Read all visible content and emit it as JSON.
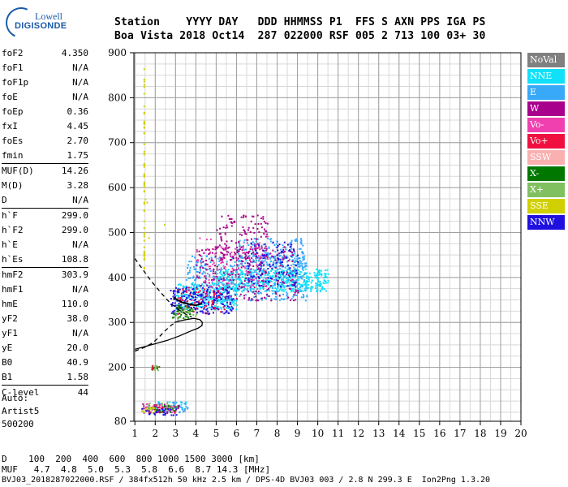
{
  "logo": {
    "line1": "Lowell",
    "line2": "DIGISONDE"
  },
  "header": {
    "row1": "Station    YYYY DAY   DDD HHMMSS P1  FFS S AXN PPS IGA PS",
    "row2": "Boa Vista 2018 Oct14  287 022000 RSF 005 2 713 100 03+ 30"
  },
  "params": [
    {
      "label": "foF2",
      "value": "4.350",
      "sep": false
    },
    {
      "label": "foF1",
      "value": "N/A",
      "sep": false
    },
    {
      "label": "foF1p",
      "value": "N/A",
      "sep": false
    },
    {
      "label": "foE",
      "value": "N/A",
      "sep": false
    },
    {
      "label": "foEp",
      "value": "0.36",
      "sep": false
    },
    {
      "label": "fxI",
      "value": "4.45",
      "sep": false
    },
    {
      "label": "foEs",
      "value": "2.70",
      "sep": false
    },
    {
      "label": "fmin",
      "value": "1.75",
      "sep": false
    },
    {
      "label": "MUF(D)",
      "value": "14.26",
      "sep": true
    },
    {
      "label": "M(D)",
      "value": "3.28",
      "sep": false
    },
    {
      "label": "D",
      "value": "N/A",
      "sep": false
    },
    {
      "label": "h`F",
      "value": "299.0",
      "sep": true
    },
    {
      "label": "h`F2",
      "value": "299.0",
      "sep": false
    },
    {
      "label": "h`E",
      "value": "N/A",
      "sep": false
    },
    {
      "label": "h`Es",
      "value": "108.8",
      "sep": false
    },
    {
      "label": "hmF2",
      "value": "303.9",
      "sep": true
    },
    {
      "label": "hmF1",
      "value": "N/A",
      "sep": false
    },
    {
      "label": "hmE",
      "value": "110.0",
      "sep": false
    },
    {
      "label": "yF2",
      "value": "38.0",
      "sep": false
    },
    {
      "label": "yF1",
      "value": "N/A",
      "sep": false
    },
    {
      "label": "yE",
      "value": "20.0",
      "sep": false
    },
    {
      "label": "B0",
      "value": "40.9",
      "sep": false
    },
    {
      "label": "B1",
      "value": "1.58",
      "sep": false
    },
    {
      "label": "C-level",
      "value": "44",
      "sep": true
    }
  ],
  "auto": {
    "line1": "Auto:",
    "line2": "Artist5",
    "line3": "500200"
  },
  "legend": [
    {
      "label": "NoVal",
      "color": "#808080"
    },
    {
      "label": "NNE",
      "color": "#10e0f8"
    },
    {
      "label": "E",
      "color": "#38a8f8"
    },
    {
      "label": "W",
      "color": "#a8008c"
    },
    {
      "label": "Vo-",
      "color": "#f040b0"
    },
    {
      "label": "Vo+",
      "color": "#f01040"
    },
    {
      "label": "SSW",
      "color": "#f8b0b0"
    },
    {
      "label": "X-",
      "color": "#007800"
    },
    {
      "label": "X+",
      "color": "#80c060"
    },
    {
      "label": "SSE",
      "color": "#d0d000"
    },
    {
      "label": "NNW",
      "color": "#2010e0"
    }
  ],
  "footer": {
    "row1": "D    100  200  400  600  800 1000 1500 3000 [km]",
    "row2": "MUF   4.7  4.8  5.0  5.3  5.8  6.6  8.7 14.3 [MHz]",
    "row3": "BVJ03_2018287022000.RSF / 384fx512h 50 kHz 2.5 km / DPS-4D BVJ03 003 / 2.8 N 299.3 E  Ion2Png 1.3.20"
  },
  "chart_data": {
    "type": "scatter",
    "xlim": [
      1,
      20
    ],
    "ylim": [
      80,
      900
    ],
    "xticks": [
      1,
      2,
      3,
      4,
      5,
      6,
      7,
      8,
      9,
      10,
      11,
      12,
      13,
      14,
      15,
      16,
      17,
      18,
      19,
      20
    ],
    "yticks": [
      80,
      200,
      300,
      400,
      500,
      600,
      700,
      800,
      900
    ],
    "xticks_minor_step": 0.5,
    "yticks_minor_step": 25,
    "grid": true,
    "legend_position": "right",
    "echo_clusters": [
      {
        "series": "NNE",
        "x": [
          5.0,
          10.5
        ],
        "y": [
          370,
          420
        ],
        "n": 520
      },
      {
        "series": "NNE",
        "x": [
          3.0,
          6.0
        ],
        "y": [
          330,
          390
        ],
        "n": 260
      },
      {
        "series": "E",
        "x": [
          3.5,
          9.5
        ],
        "y": [
          350,
          450
        ],
        "n": 420
      },
      {
        "series": "E",
        "x": [
          6.0,
          9.3
        ],
        "y": [
          420,
          490
        ],
        "n": 160
      },
      {
        "series": "W",
        "x": [
          4.0,
          9.0
        ],
        "y": [
          350,
          470
        ],
        "n": 280
      },
      {
        "series": "W",
        "x": [
          5.0,
          7.5
        ],
        "y": [
          440,
          540
        ],
        "n": 120
      },
      {
        "series": "NNW",
        "x": [
          2.7,
          5.8
        ],
        "y": [
          320,
          380
        ],
        "n": 200
      },
      {
        "series": "NNW",
        "x": [
          6.5,
          9.0
        ],
        "y": [
          380,
          480
        ],
        "n": 110
      },
      {
        "series": "Vo-",
        "x": [
          4.0,
          7.5
        ],
        "y": [
          380,
          500
        ],
        "n": 90
      },
      {
        "series": "Vo+",
        "x": [
          3.0,
          5.5
        ],
        "y": [
          320,
          380
        ],
        "n": 60
      },
      {
        "series": "X-",
        "x": [
          2.8,
          3.8
        ],
        "y": [
          310,
          340
        ],
        "n": 40
      },
      {
        "series": "X+",
        "x": [
          3.0,
          4.0
        ],
        "y": [
          305,
          335
        ],
        "n": 25
      },
      {
        "series": "SSE",
        "x": [
          1.42,
          1.42
        ],
        "y": [
          420,
          870
        ],
        "n": 55
      },
      {
        "series": "SSE",
        "x": [
          1.42,
          2.5
        ],
        "y": [
          480,
          590
        ],
        "n": 4
      },
      {
        "series": "X-",
        "x": [
          1.8,
          2.2
        ],
        "y": [
          195,
          205
        ],
        "n": 12
      },
      {
        "series": "X+",
        "x": [
          1.8,
          2.2
        ],
        "y": [
          195,
          205
        ],
        "n": 10
      },
      {
        "series": "Vo+",
        "x": [
          1.8,
          2.1
        ],
        "y": [
          195,
          205
        ],
        "n": 6
      },
      {
        "series": "NNE",
        "x": [
          2.0,
          3.5
        ],
        "y": [
          105,
          125
        ],
        "n": 30
      },
      {
        "series": "E",
        "x": [
          2.0,
          3.6
        ],
        "y": [
          100,
          125
        ],
        "n": 40
      },
      {
        "series": "W",
        "x": [
          1.3,
          3.2
        ],
        "y": [
          100,
          120
        ],
        "n": 40
      },
      {
        "series": "Vo+",
        "x": [
          1.3,
          3.0
        ],
        "y": [
          100,
          118
        ],
        "n": 30
      },
      {
        "series": "Vo-",
        "x": [
          1.5,
          3.0
        ],
        "y": [
          100,
          120
        ],
        "n": 25
      },
      {
        "series": "X-",
        "x": [
          1.6,
          3.0
        ],
        "y": [
          100,
          120
        ],
        "n": 20
      },
      {
        "series": "X+",
        "x": [
          1.6,
          3.0
        ],
        "y": [
          105,
          122
        ],
        "n": 15
      },
      {
        "series": "SSE",
        "x": [
          1.3,
          2.0
        ],
        "y": [
          100,
          112
        ],
        "n": 10
      },
      {
        "series": "NNW",
        "x": [
          1.3,
          3.2
        ],
        "y": [
          95,
          110
        ],
        "n": 25
      }
    ],
    "profile_solid": [
      [
        2.95,
        300
      ],
      [
        3.2,
        303
      ],
      [
        3.5,
        306
      ],
      [
        3.9,
        309
      ],
      [
        4.2,
        306
      ],
      [
        4.32,
        300
      ],
      [
        4.3,
        293
      ],
      [
        4.1,
        287
      ],
      [
        3.7,
        280
      ],
      [
        3.2,
        270
      ],
      [
        2.6,
        260
      ],
      [
        1.8,
        250
      ],
      [
        1.0,
        240
      ]
    ],
    "profile_dashed_upper": [
      [
        1.0,
        442
      ],
      [
        1.35,
        420
      ],
      [
        1.8,
        392
      ],
      [
        2.3,
        365
      ],
      [
        2.7,
        345
      ],
      [
        3.1,
        330
      ],
      [
        3.5,
        318
      ],
      [
        3.8,
        312
      ]
    ],
    "profile_dashed_lower": [
      [
        1.0,
        236
      ],
      [
        1.5,
        245
      ],
      [
        1.9,
        255
      ],
      [
        2.2,
        268
      ],
      [
        2.5,
        282
      ],
      [
        2.8,
        294
      ],
      [
        3.0,
        300
      ]
    ],
    "trace": [
      [
        2.9,
        355
      ],
      [
        3.3,
        345
      ],
      [
        3.7,
        340
      ],
      [
        4.0,
        338
      ],
      [
        4.3,
        342
      ]
    ]
  }
}
